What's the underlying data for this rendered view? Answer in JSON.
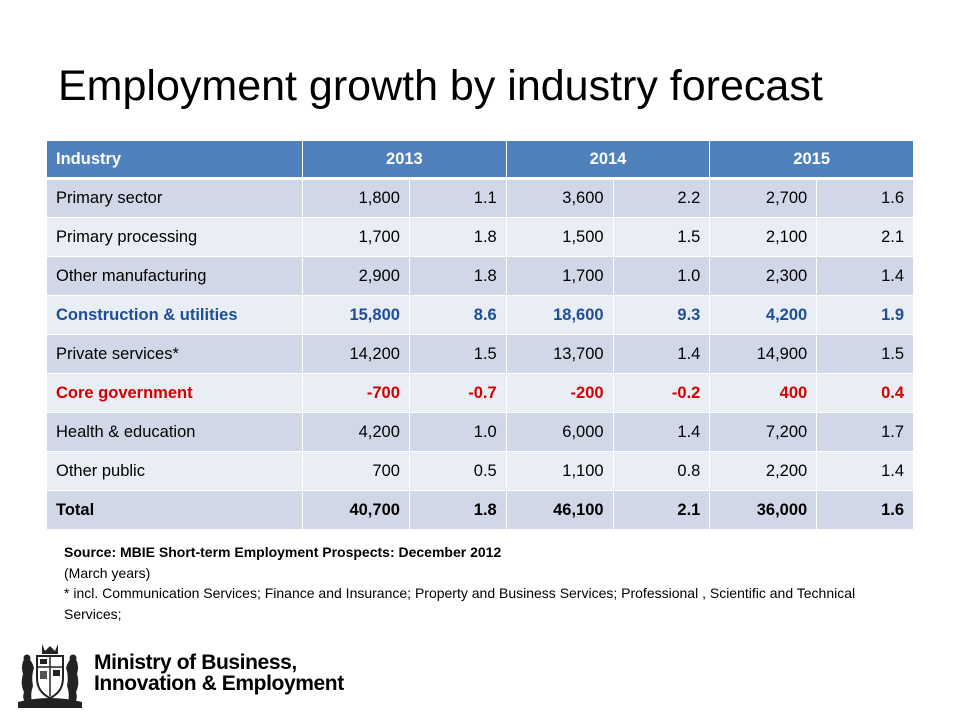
{
  "slide": {
    "title": "Employment growth by industry forecast"
  },
  "table": {
    "headers": {
      "industry": "Industry",
      "y2013": "2013",
      "y2014": "2014",
      "y2015": "2015"
    },
    "rows": [
      {
        "industry": "Primary sector",
        "n2013": "1,800",
        "p2013": "1.1",
        "n2014": "3,600",
        "p2014": "2.2",
        "n2015": "2,700",
        "p2015": "1.6"
      },
      {
        "industry": "Primary processing",
        "n2013": "1,700",
        "p2013": "1.8",
        "n2014": "1,500",
        "p2014": "1.5",
        "n2015": "2,100",
        "p2015": "2.1"
      },
      {
        "industry": "Other manufacturing",
        "n2013": "2,900",
        "p2013": "1.8",
        "n2014": "1,700",
        "p2014": "1.0",
        "n2015": "2,300",
        "p2015": "1.4"
      },
      {
        "industry": "Construction & utilities",
        "n2013": "15,800",
        "p2013": "8.6",
        "n2014": "18,600",
        "p2014": "9.3",
        "n2015": "4,200",
        "p2015": "1.9"
      },
      {
        "industry": "Private services*",
        "n2013": "14,200",
        "p2013": "1.5",
        "n2014": "13,700",
        "p2014": "1.4",
        "n2015": "14,900",
        "p2015": "1.5"
      },
      {
        "industry": "Core government",
        "n2013": "-700",
        "p2013": "-0.7",
        "n2014": "-200",
        "p2014": "-0.2",
        "n2015": "400",
        "p2015": "0.4"
      },
      {
        "industry": "Health & education",
        "n2013": "4,200",
        "p2013": "1.0",
        "n2014": "6,000",
        "p2014": "1.4",
        "n2015": "7,200",
        "p2015": "1.7"
      },
      {
        "industry": "Other public",
        "n2013": "700",
        "p2013": "0.5",
        "n2014": "1,100",
        "p2014": "0.8",
        "n2015": "2,200",
        "p2015": "1.4"
      },
      {
        "industry": "Total",
        "n2013": "40,700",
        "p2013": "1.8",
        "n2014": "46,100",
        "p2014": "2.1",
        "n2015": "36,000",
        "p2015": "1.6"
      }
    ]
  },
  "notes": {
    "source": "Source: MBIE Short-term Employment Prospects: December 2012",
    "period": "(March years)",
    "footnote": "* incl. Communication Services; Finance and Insurance; Property and Business Services; Professional , Scientific and Technical Services;"
  },
  "logo": {
    "line1": "Ministry of Business,",
    "line2": "Innovation & Employment",
    "icon": "nz-coat-of-arms-icon"
  },
  "colors": {
    "header_bg": "#4f81bd",
    "row_band_dark": "#d0d8e8",
    "row_band_light": "#e9edf4",
    "highlight_blue": "#1f4e99",
    "highlight_red": "#d40000"
  }
}
